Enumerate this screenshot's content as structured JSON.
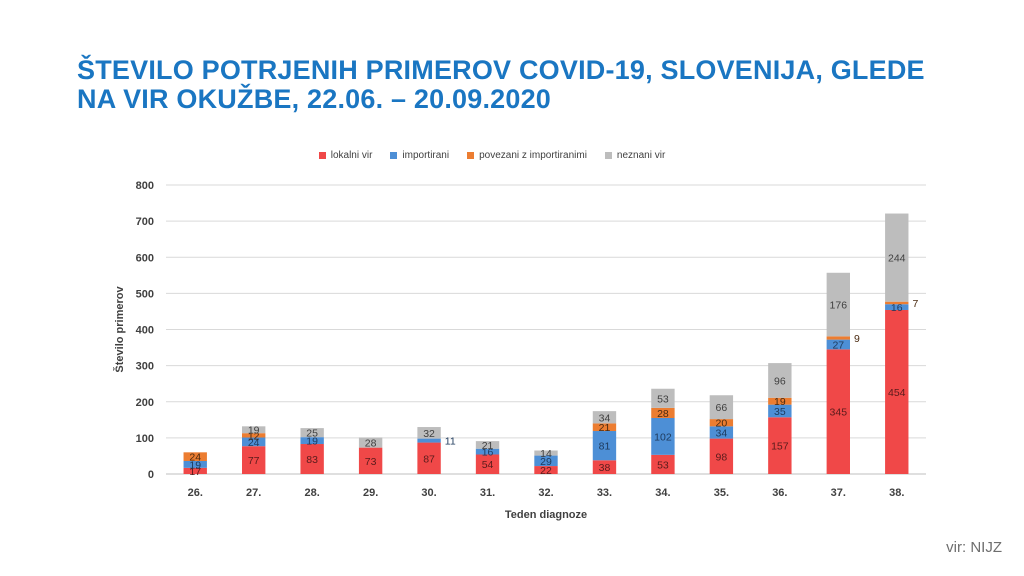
{
  "page": {
    "title_line1": "ŠTEVILO POTRJENIH PRIMEROV COVID-19, SLOVENIJA, GLEDE",
    "title_line2": "NA VIR OKUŽBE, 22.06. – 20.09.2020",
    "source": "vir: NIJZ"
  },
  "chart_data": {
    "type": "bar",
    "stacked": true,
    "categories": [
      "26.",
      "27.",
      "28.",
      "29.",
      "30.",
      "31.",
      "32.",
      "33.",
      "34.",
      "35.",
      "36.",
      "37.",
      "38."
    ],
    "series": [
      {
        "name": "lokalni vir",
        "color": "#f04848",
        "label_color": "#5a1c1c",
        "values": [
          17,
          77,
          83,
          73,
          87,
          54,
          22,
          38,
          53,
          98,
          157,
          345,
          454
        ]
      },
      {
        "name": "importirani",
        "color": "#4d8fd6",
        "label_color": "#1e3a5c",
        "values": [
          19,
          24,
          19,
          0,
          11,
          16,
          29,
          81,
          102,
          34,
          35,
          27,
          16
        ]
      },
      {
        "name": "povezani z importiranimi",
        "color": "#ec7d31",
        "label_color": "#4a2a10",
        "values": [
          24,
          12,
          0,
          0,
          0,
          0,
          0,
          21,
          28,
          20,
          19,
          9,
          7
        ]
      },
      {
        "name": "neznani vir",
        "color": "#bdbdbd",
        "label_color": "#404040",
        "values": [
          0,
          19,
          25,
          28,
          32,
          21,
          14,
          34,
          53,
          66,
          96,
          176,
          244
        ]
      }
    ],
    "xlabel": "Teden diagnoze",
    "ylabel": "Število primerov",
    "ylim": [
      0,
      800
    ],
    "yticks": [
      0,
      100,
      200,
      300,
      400,
      500,
      600,
      700,
      800
    ],
    "grid": true,
    "legend_position": "top"
  }
}
